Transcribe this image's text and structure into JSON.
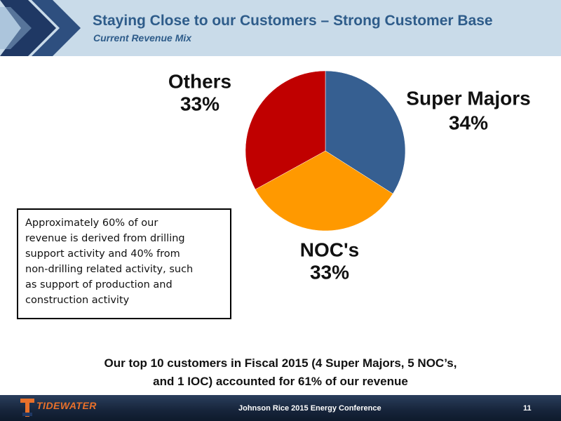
{
  "header": {
    "title": "Staying Close to our Customers – Strong Customer Base",
    "subtitle": "Current Revenue Mix"
  },
  "chart_data": {
    "type": "pie",
    "categories": [
      "Super Majors",
      "NOC's",
      "Others"
    ],
    "values": [
      34,
      33,
      33
    ],
    "value_labels": [
      "34%",
      "33%",
      "33%"
    ],
    "colors": [
      "#365f91",
      "#ff9900",
      "#c00000"
    ]
  },
  "callout": {
    "lines": [
      "Approximately 60% of our",
      "revenue is derived from drilling",
      "support activity and 40% from",
      "non-drilling related activity, such",
      "as support of production and",
      "construction activity"
    ]
  },
  "summary": {
    "lines": [
      "Our top 10 customers in Fiscal 2015 (4 Super Majors, 5 NOC’s,",
      "and 1 IOC) accounted for 61% of our revenue"
    ]
  },
  "footer": {
    "logo": "TIDEWATER",
    "event": "Johnson Rice 2015 Energy Conference",
    "page": "11"
  }
}
